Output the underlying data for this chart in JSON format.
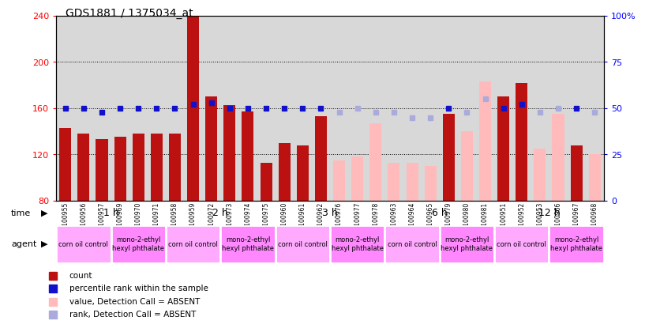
{
  "title": "GDS1881 / 1375034_at",
  "samples": [
    "GSM100955",
    "GSM100956",
    "GSM100957",
    "GSM100969",
    "GSM100970",
    "GSM100971",
    "GSM100958",
    "GSM100959",
    "GSM100972",
    "GSM100973",
    "GSM100974",
    "GSM100975",
    "GSM100960",
    "GSM100961",
    "GSM100962",
    "GSM100976",
    "GSM100977",
    "GSM100978",
    "GSM100963",
    "GSM100964",
    "GSM100965",
    "GSM100979",
    "GSM100980",
    "GSM100981",
    "GSM100951",
    "GSM100952",
    "GSM100953",
    "GSM100966",
    "GSM100967",
    "GSM100968"
  ],
  "bar_values": [
    143,
    138,
    133,
    135,
    138,
    138,
    138,
    240,
    170,
    163,
    157,
    113,
    130,
    128,
    153,
    null,
    null,
    null,
    null,
    null,
    null,
    155,
    null,
    null,
    170,
    182,
    null,
    null,
    128,
    null
  ],
  "bar_values_absent": [
    null,
    null,
    null,
    null,
    null,
    null,
    null,
    null,
    null,
    null,
    null,
    null,
    null,
    null,
    null,
    115,
    118,
    147,
    113,
    113,
    110,
    null,
    140,
    183,
    null,
    null,
    125,
    155,
    null,
    120
  ],
  "rank_values": [
    50,
    50,
    48,
    50,
    50,
    50,
    50,
    52,
    53,
    50,
    50,
    50,
    50,
    50,
    50,
    48,
    50,
    48,
    48,
    45,
    45,
    50,
    48,
    55,
    50,
    52,
    48,
    50,
    50,
    48
  ],
  "rank_absent": [
    false,
    false,
    false,
    false,
    false,
    false,
    false,
    false,
    false,
    false,
    false,
    false,
    false,
    false,
    false,
    true,
    true,
    true,
    true,
    true,
    true,
    false,
    true,
    true,
    false,
    false,
    true,
    true,
    false,
    true
  ],
  "time_groups": [
    {
      "label": "1 h",
      "start": 0,
      "end": 6
    },
    {
      "label": "2 h",
      "start": 6,
      "end": 12
    },
    {
      "label": "3 h",
      "start": 12,
      "end": 18
    },
    {
      "label": "6 h",
      "start": 18,
      "end": 24
    },
    {
      "label": "12 h",
      "start": 24,
      "end": 30
    }
  ],
  "agent_groups": [
    {
      "label": "corn oil control",
      "start": 0,
      "end": 3,
      "type": "corn"
    },
    {
      "label": "mono-2-ethyl\nhexyl phthalate",
      "start": 3,
      "end": 6,
      "type": "mono"
    },
    {
      "label": "corn oil control",
      "start": 6,
      "end": 9,
      "type": "corn"
    },
    {
      "label": "mono-2-ethyl\nhexyl phthalate",
      "start": 9,
      "end": 12,
      "type": "mono"
    },
    {
      "label": "corn oil control",
      "start": 12,
      "end": 15,
      "type": "corn"
    },
    {
      "label": "mono-2-ethyl\nhexyl phthalate",
      "start": 15,
      "end": 18,
      "type": "mono"
    },
    {
      "label": "corn oil control",
      "start": 18,
      "end": 21,
      "type": "corn"
    },
    {
      "label": "mono-2-ethyl\nhexyl phthalate",
      "start": 21,
      "end": 24,
      "type": "mono"
    },
    {
      "label": "corn oil control",
      "start": 24,
      "end": 27,
      "type": "corn"
    },
    {
      "label": "mono-2-ethyl\nhexyl phthalate",
      "start": 27,
      "end": 30,
      "type": "mono"
    }
  ],
  "ylim_left": [
    80,
    240
  ],
  "ylim_right": [
    0,
    100
  ],
  "yticks_left": [
    80,
    120,
    160,
    200,
    240
  ],
  "yticks_right": [
    0,
    25,
    50,
    75,
    100
  ],
  "bar_color_present": "#BB1111",
  "bar_color_absent": "#FFBBBB",
  "rank_color_present": "#1111CC",
  "rank_color_absent": "#AAAADD",
  "bg_color": "#D8D8D8",
  "time_row_color": "#88DD88",
  "agent_corn_color": "#FFAAFF",
  "agent_mono_color": "#FF88FF",
  "legend_items": [
    {
      "color": "#BB1111",
      "label": "count"
    },
    {
      "color": "#1111CC",
      "label": "percentile rank within the sample"
    },
    {
      "color": "#FFBBBB",
      "label": "value, Detection Call = ABSENT"
    },
    {
      "color": "#AAAADD",
      "label": "rank, Detection Call = ABSENT"
    }
  ]
}
